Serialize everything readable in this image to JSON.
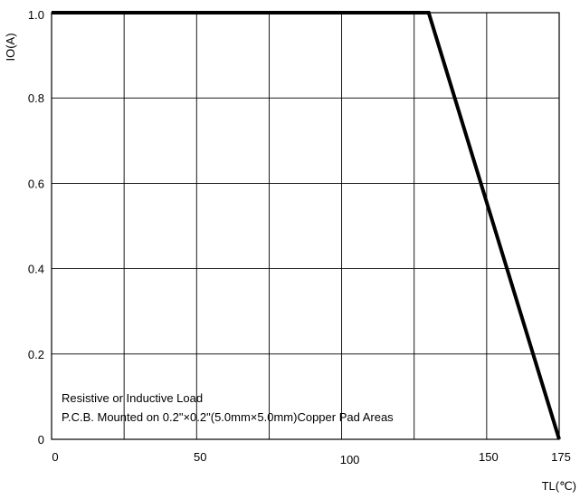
{
  "chart_data": {
    "type": "line",
    "xlabel": "TL(℃)",
    "ylabel": "IO(A)",
    "xlim": [
      0,
      175
    ],
    "ylim": [
      0,
      1.0
    ],
    "grid": true,
    "x_ticks": [
      {
        "value": 0,
        "label": "0"
      },
      {
        "value": 50,
        "label": "50"
      },
      {
        "value": 100,
        "label": "100"
      },
      {
        "value": 150,
        "label": "150"
      },
      {
        "value": 175,
        "label": "175"
      }
    ],
    "y_ticks": [
      {
        "value": 0,
        "label": "0"
      },
      {
        "value": 0.2,
        "label": "0.2"
      },
      {
        "value": 0.4,
        "label": "0.4"
      },
      {
        "value": 0.6,
        "label": "0.6"
      },
      {
        "value": 0.8,
        "label": "0.8"
      },
      {
        "value": 1.0,
        "label": "1.0"
      }
    ],
    "series": [
      {
        "x": [
          0,
          130,
          175
        ],
        "y": [
          1.0,
          1.0,
          0
        ],
        "color": "#000000"
      }
    ],
    "annotations": [
      "Resistive or Inductive Load",
      "P.C.B. Mounted on 0.2\"×0.2\"(5.0mm×5.0mm)Copper Pad Areas"
    ]
  }
}
